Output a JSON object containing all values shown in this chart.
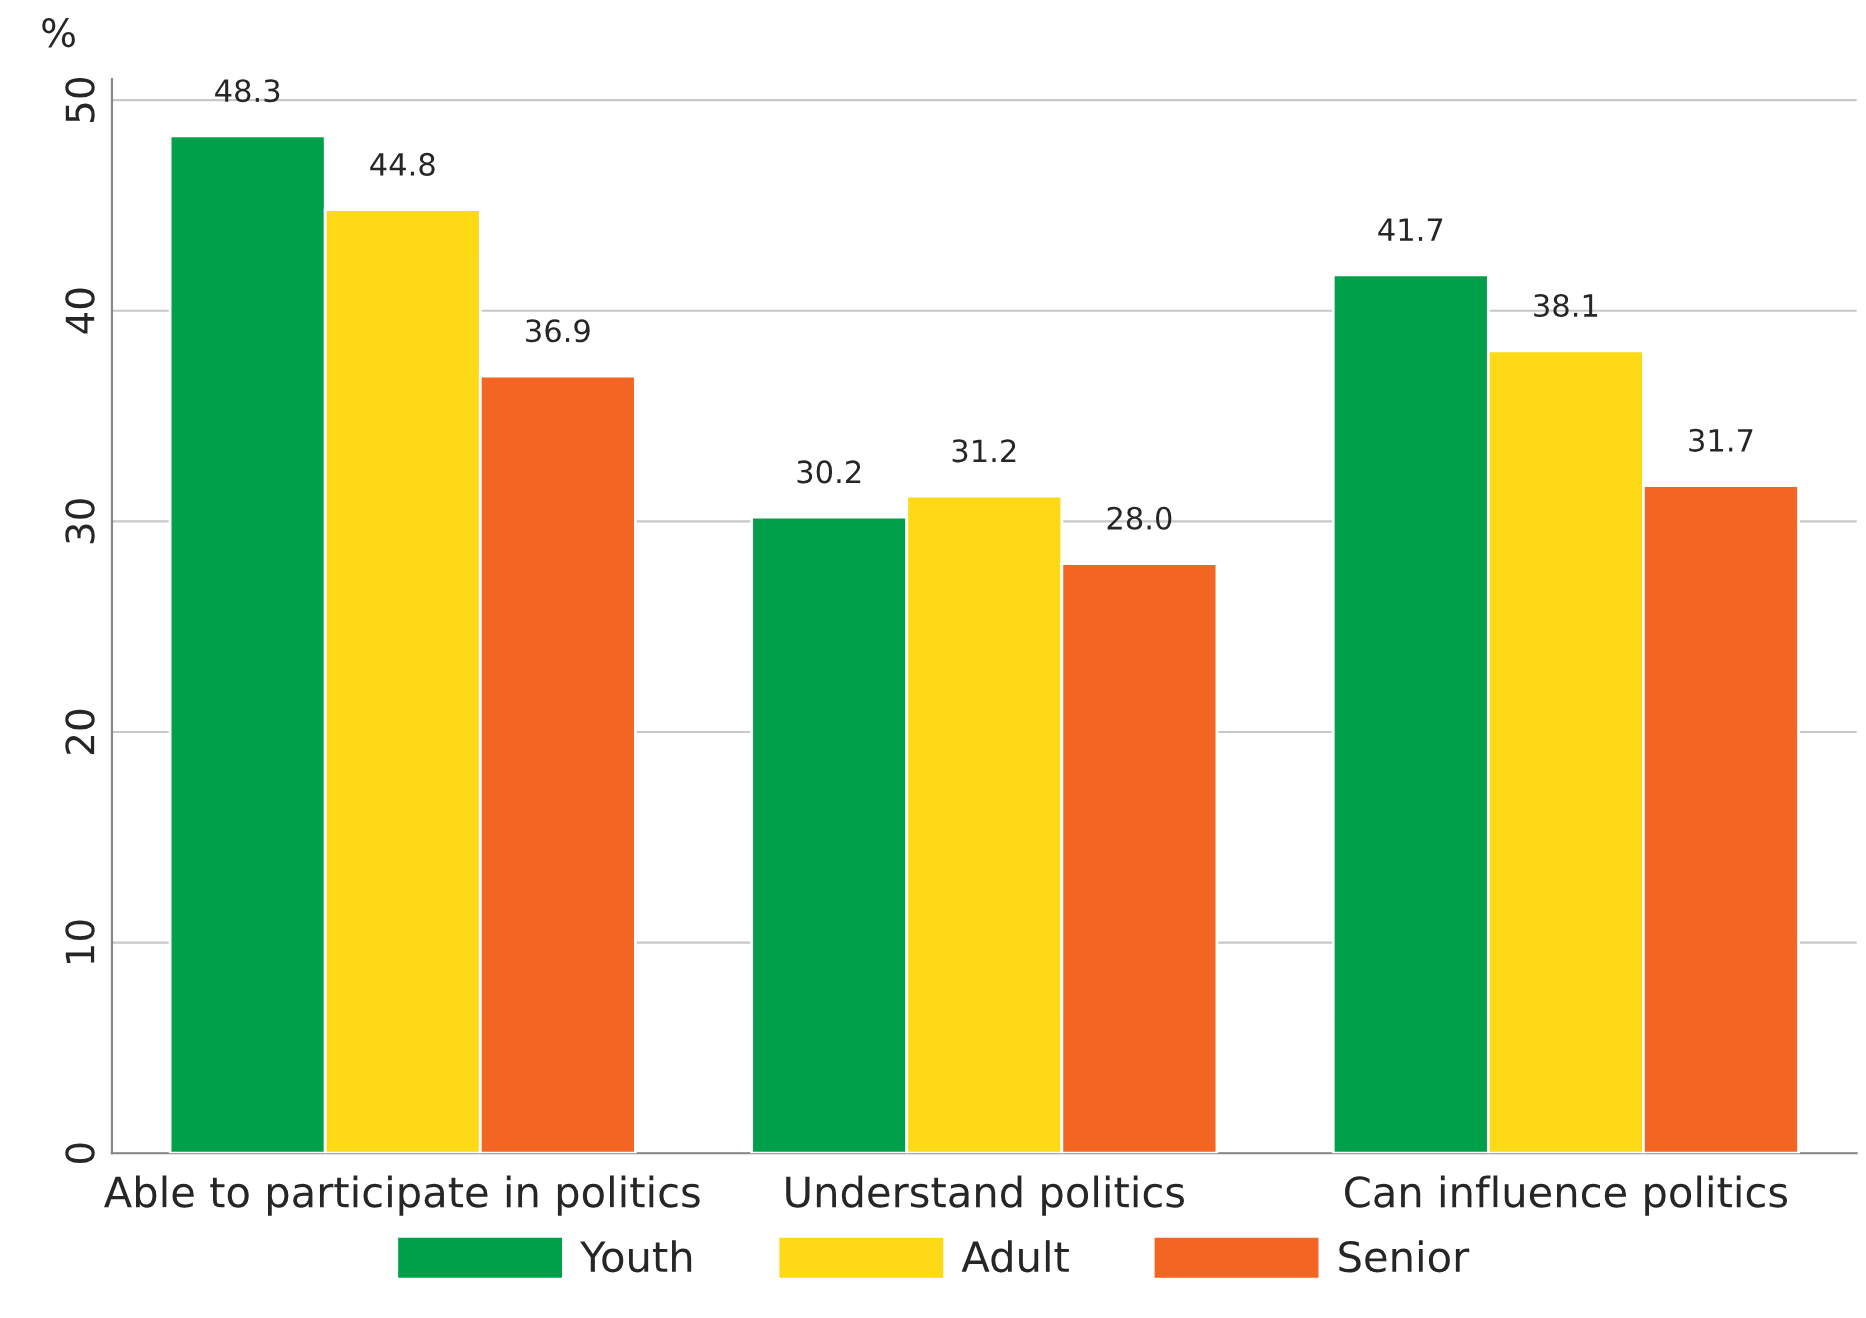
{
  "chart_data": {
    "type": "bar",
    "ylabel": "%",
    "categories": [
      "Able to participate in politics",
      "Understand politics",
      "Can influence politics"
    ],
    "series": [
      {
        "name": "Youth",
        "color": "#00a04a",
        "values": [
          48.3,
          30.2,
          41.7
        ],
        "value_labels": [
          "48.3",
          "30.2",
          "41.7"
        ]
      },
      {
        "name": "Adult",
        "color": "#fdd916",
        "values": [
          44.8,
          31.2,
          38.1
        ],
        "value_labels": [
          "44.8",
          "31.2",
          "38.1"
        ]
      },
      {
        "name": "Senior",
        "color": "#f26522",
        "values": [
          36.9,
          28.0,
          31.7
        ],
        "value_labels": [
          "36.9",
          "28.0",
          "31.7"
        ]
      }
    ],
    "ylim": [
      0,
      51
    ],
    "yticks": [
      0,
      10,
      20,
      30,
      40,
      50
    ],
    "grid": "y",
    "legend": "bottom",
    "data_labels": true
  }
}
